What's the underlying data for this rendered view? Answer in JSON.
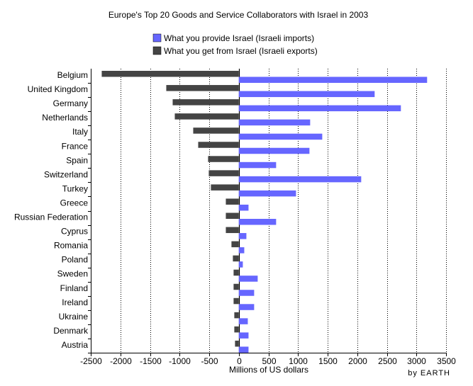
{
  "chart_data": {
    "type": "bar",
    "orientation": "horizontal",
    "title": "Europe's Top 20 Goods and Service Collaborators with Israel in 2003",
    "xlabel": "Millions of US dollars",
    "ylabel": "",
    "credit": "by EARTH",
    "xlim": [
      -2500,
      3500
    ],
    "xticks": [
      -2500,
      -2000,
      -1500,
      -1000,
      -500,
      0,
      500,
      1000,
      1500,
      2000,
      2500,
      3000,
      3500
    ],
    "grid": "vertical dotted",
    "legend_placement": "top-center",
    "categories": [
      "Belgium",
      "United Kingdom",
      "Germany",
      "Netherlands",
      "Italy",
      "France",
      "Spain",
      "Switzerland",
      "Turkey",
      "Greece",
      "Russian Federation",
      "Cyprus",
      "Romania",
      "Poland",
      "Sweden",
      "Finland",
      "Ireland",
      "Ukraine",
      "Denmark",
      "Austria"
    ],
    "series": [
      {
        "name": "What you get from Israel (Israeli exports)",
        "color": "#444444",
        "values": [
          -2315,
          -1225,
          -1117,
          -1081,
          -770,
          -686,
          -519,
          -507,
          -471,
          -219,
          -219,
          -219,
          -124,
          -100,
          -88,
          -88,
          -88,
          -76,
          -76,
          -64
        ]
      },
      {
        "name": "What you provide Israel (Israeli imports)",
        "color": "#6666ff",
        "values": [
          3180,
          2294,
          2737,
          1205,
          1409,
          1193,
          630,
          2067,
          966,
          164,
          630,
          128,
          92,
          68,
          319,
          259,
          259,
          152,
          164,
          164
        ]
      }
    ]
  }
}
